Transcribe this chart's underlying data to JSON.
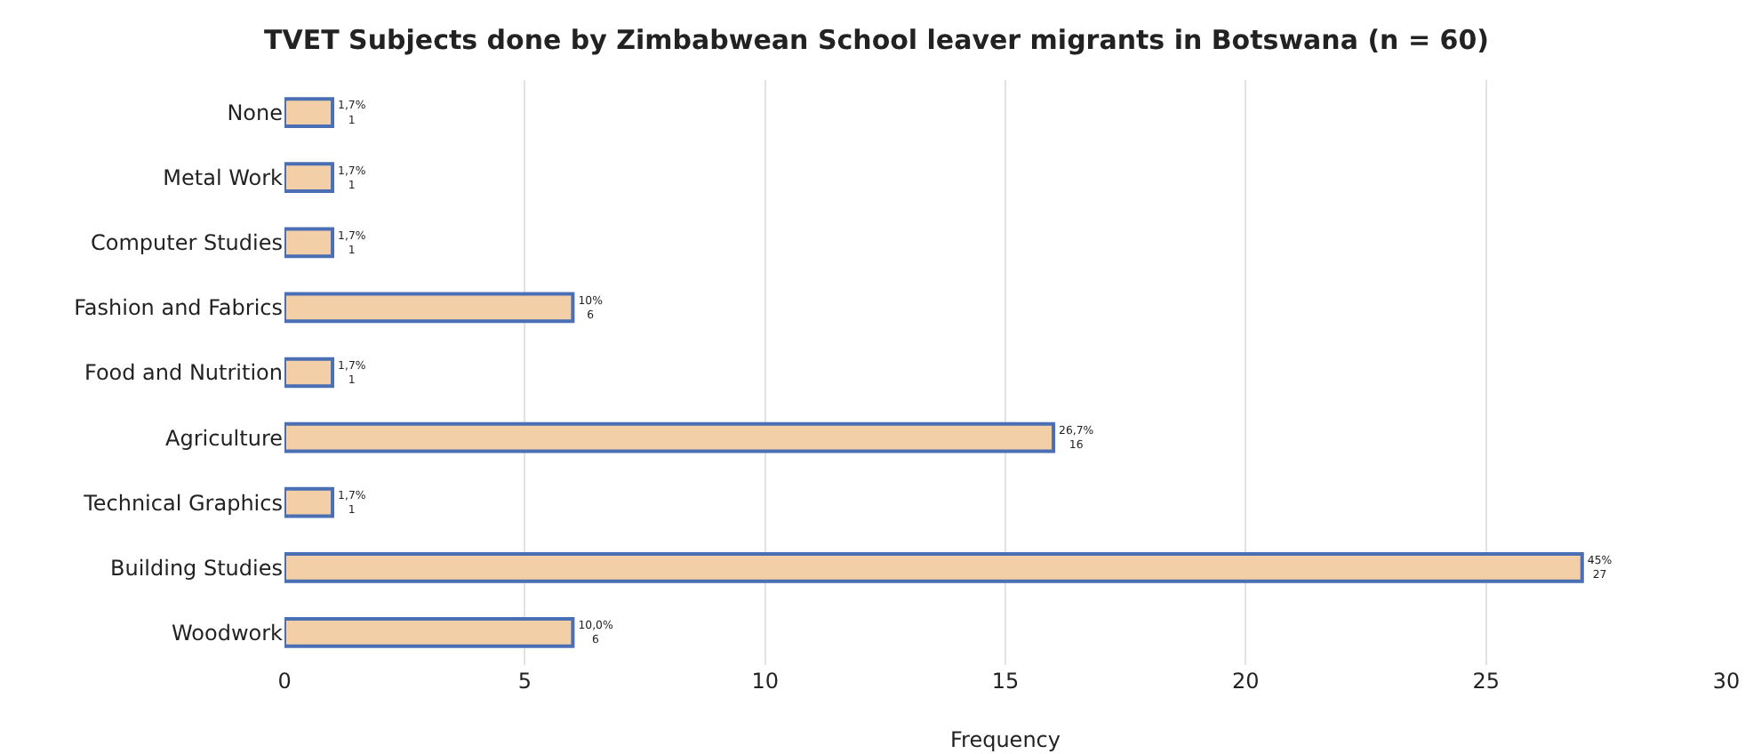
{
  "chart_data": {
    "type": "bar",
    "orientation": "horizontal",
    "title": "TVET Subjects done by Zimbabwean School leaver migrants in Botswana (n = 60)",
    "xlabel": "Frequency",
    "categories": [
      "None",
      "Metal Work",
      "Computer Studies",
      "Fashion and Fabrics",
      "Food and Nutrition",
      "Agriculture",
      "Technical Graphics",
      "Building Studies",
      "Woodwork"
    ],
    "values": [
      1,
      1,
      1,
      6,
      1,
      16,
      1,
      27,
      6
    ],
    "value_labels": [
      "1,7%\n1",
      "1,7%\n1",
      "1,7%\n1",
      "10%\n6",
      "1,7%\n1",
      "26,7%\n16",
      "1,7%\n1",
      "45%\n27",
      "10,0%\n6"
    ],
    "color": "#f2cfa6",
    "xlim": [
      0,
      30
    ],
    "xticks": [
      0,
      5,
      10,
      15,
      20,
      25,
      30
    ],
    "grid": "x",
    "legend": false
  }
}
